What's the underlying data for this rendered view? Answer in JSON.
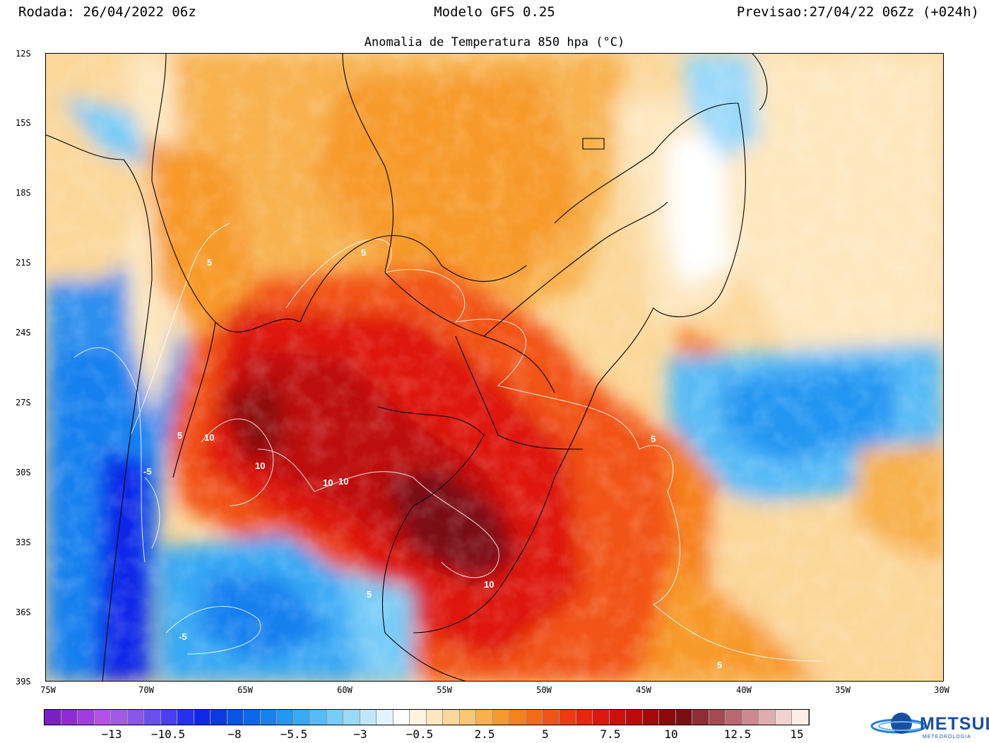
{
  "header": {
    "run": "Rodada: 26/04/2022 06z",
    "model": "Modelo GFS 0.25",
    "forecast": "Previsao:27/04/22 06Zz (+024h)"
  },
  "map_title": "Anomalia de Temperatura 850 hpa (°C)",
  "lat_labels": [
    "12S",
    "15S",
    "18S",
    "21S",
    "24S",
    "27S",
    "30S",
    "33S",
    "36S",
    "39S"
  ],
  "lon_labels": [
    "75W",
    "70W",
    "65W",
    "60W",
    "55W",
    "50W",
    "45W",
    "40W",
    "35W",
    "30W"
  ],
  "contour_labels": [
    "5",
    "5",
    "5",
    "5",
    "5",
    "5",
    "10",
    "10",
    "10",
    "10",
    "10",
    "-5",
    "-5"
  ],
  "scale_labels": [
    "−13",
    "−10.5",
    "−8",
    "−5.5",
    "−3",
    "−0.5",
    "2.5",
    "5",
    "7.5",
    "10",
    "12.5",
    "15"
  ],
  "scale_colors": [
    "#7a1fc2",
    "#8f2bd6",
    "#a13de0",
    "#b452e8",
    "#a358e6",
    "#8a55ea",
    "#6a4ff0",
    "#4a3ef5",
    "#2530f0",
    "#0f28e8",
    "#0a3ae0",
    "#0c52e6",
    "#0f66ec",
    "#1880ef",
    "#2196f2",
    "#38a9f4",
    "#58bbf6",
    "#78ccf8",
    "#9ad9fa",
    "#bfe7fc",
    "#e2f4fe",
    "#ffffff",
    "#fff4de",
    "#fde7bf",
    "#fbd79a",
    "#f9c673",
    "#f8b14d",
    "#f79a2c",
    "#f6811d",
    "#f56a19",
    "#f25316",
    "#ee3a13",
    "#e72510",
    "#de170e",
    "#cf0f0c",
    "#bd0b0b",
    "#a50909",
    "#8d0808",
    "#7a0f12",
    "#8c2f35",
    "#a24b52",
    "#b8696f",
    "#cc8a8e",
    "#dfadae",
    "#f0d2cf",
    "#fbeee6"
  ],
  "colors": {
    "cold_deep": "#1a1fd8",
    "cold": "#2f8fee",
    "neutral": "#ffffff",
    "warm": "#f8b14d",
    "hot": "#e72510",
    "extreme": "#7a0f12"
  },
  "logo": {
    "text": "METSUL",
    "sub": "METEOROLOGIA"
  }
}
